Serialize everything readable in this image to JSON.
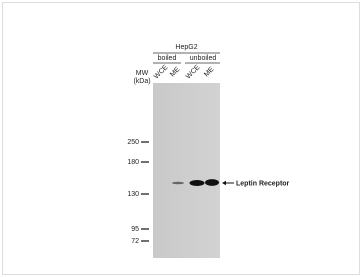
{
  "header": {
    "cell_line": "HepG2",
    "groups": [
      "boiled",
      "unboiled"
    ],
    "lanes": [
      "WCE",
      "ME",
      "WCE",
      "ME"
    ]
  },
  "mw_label": {
    "line1": "MW",
    "line2": "(kDa)"
  },
  "markers": [
    250,
    180,
    130,
    95,
    72
  ],
  "target_label": "Leptin Receptor"
}
